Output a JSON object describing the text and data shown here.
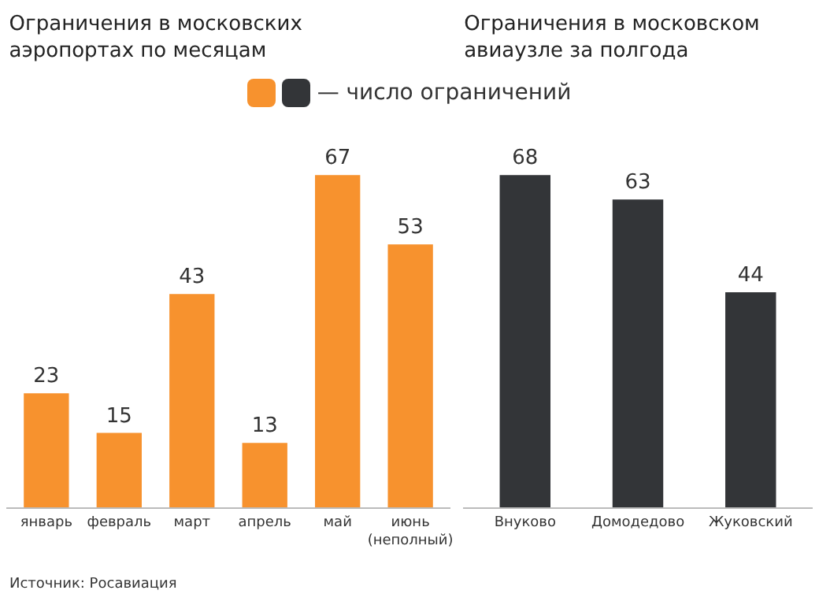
{
  "chart_data": [
    {
      "type": "bar",
      "title": "Ограничения в московских\nаэропортах по месяцам",
      "categories": [
        "январь",
        "февраль",
        "март",
        "апрель",
        "май",
        "июнь\n(неполный)"
      ],
      "series": [
        {
          "name": "— число ограничений",
          "color": "#f7922e",
          "values": [
            23,
            15,
            43,
            13,
            67,
            53
          ]
        }
      ],
      "data_labels": true,
      "legend": "top",
      "grid": false,
      "annotations": [
        "Источник: Росавиация"
      ]
    },
    {
      "type": "bar",
      "title": "Ограничения в московском\nавиаузле за полгода",
      "categories": [
        "Внуково",
        "Домодедово",
        "Жуковский"
      ],
      "series": [
        {
          "color": "#333538",
          "values": [
            68,
            63,
            44
          ]
        }
      ],
      "data_labels": true,
      "grid": false
    }
  ]
}
